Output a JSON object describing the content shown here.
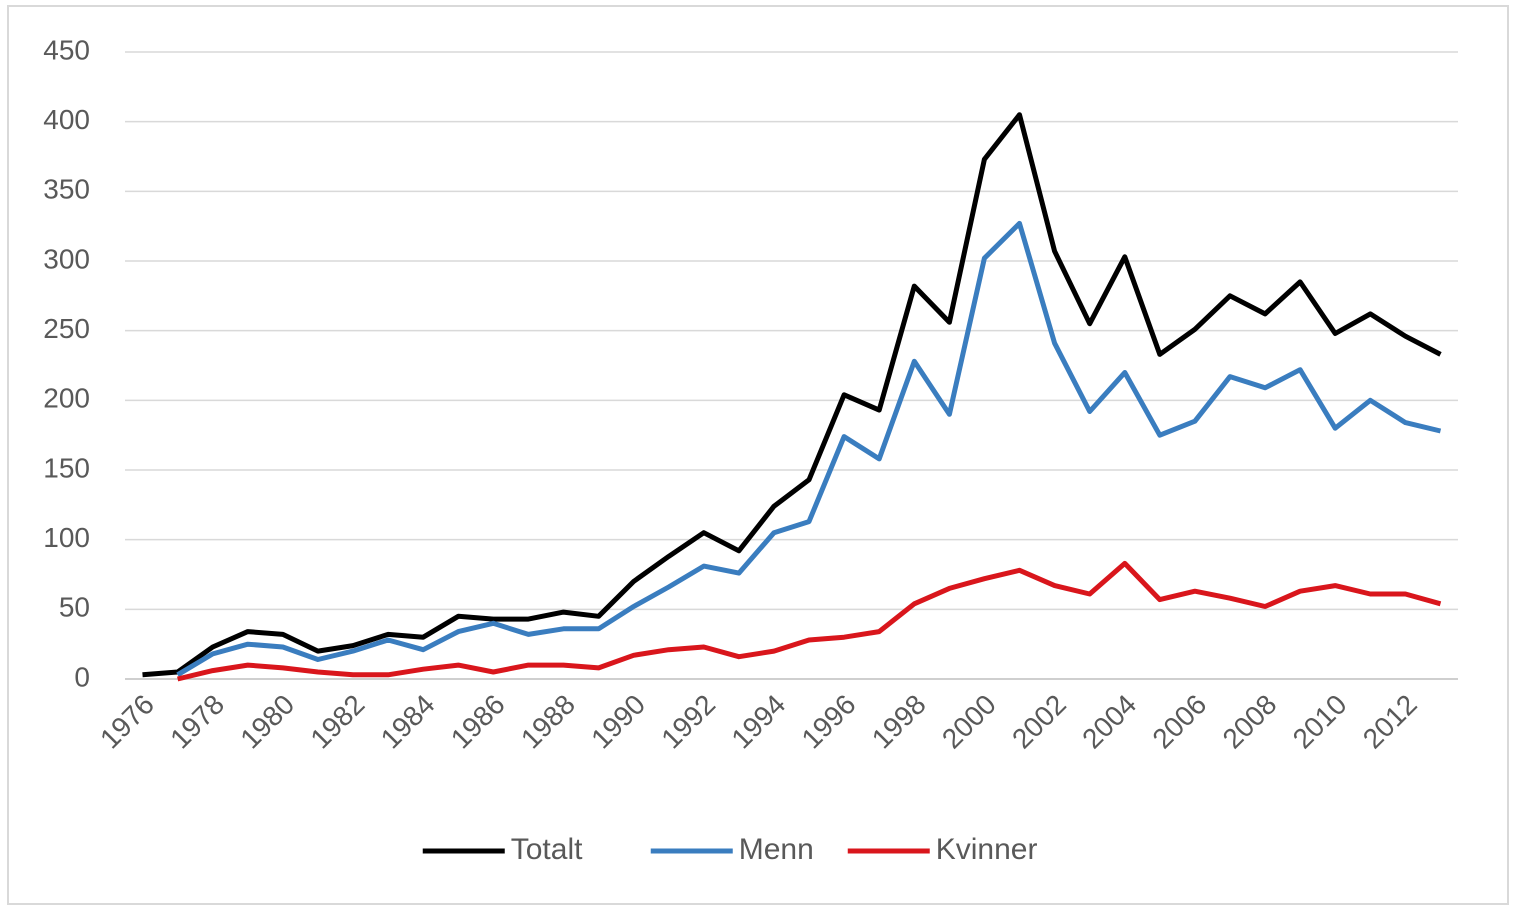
{
  "chart_data": {
    "type": "line",
    "categories": [
      "1976",
      null,
      "1978",
      null,
      "1980",
      null,
      "1982",
      null,
      "1984",
      null,
      "1986",
      null,
      "1988",
      null,
      "1990",
      null,
      "1992",
      null,
      "1994",
      null,
      "1996",
      null,
      "1998",
      null,
      "2000",
      null,
      "2002",
      null,
      "2004",
      null,
      "2006",
      null,
      "2008",
      null,
      "2010",
      null,
      "2012",
      null
    ],
    "series": [
      {
        "name": "Totalt",
        "color": "#000000",
        "values": [
          3,
          5,
          23,
          34,
          32,
          20,
          24,
          32,
          30,
          45,
          43,
          43,
          48,
          45,
          70,
          88,
          105,
          92,
          124,
          143,
          204,
          193,
          282,
          256,
          373,
          405,
          307,
          255,
          303,
          233,
          251,
          275,
          262,
          285,
          248,
          262,
          246,
          233
        ]
      },
      {
        "name": "Menn",
        "color": "#3a7dbf",
        "values": [
          null,
          3,
          18,
          25,
          23,
          14,
          20,
          28,
          21,
          34,
          40,
          32,
          36,
          36,
          52,
          66,
          81,
          76,
          105,
          113,
          174,
          158,
          228,
          190,
          302,
          327,
          241,
          192,
          220,
          175,
          185,
          217,
          209,
          222,
          180,
          200,
          184,
          178
        ]
      },
      {
        "name": "Kvinner",
        "color": "#d9161c",
        "values": [
          null,
          0,
          6,
          10,
          8,
          5,
          3,
          3,
          7,
          10,
          5,
          10,
          10,
          8,
          17,
          21,
          23,
          16,
          20,
          28,
          30,
          34,
          54,
          65,
          72,
          78,
          67,
          61,
          83,
          57,
          63,
          58,
          52,
          63,
          67,
          61,
          61,
          54
        ]
      }
    ],
    "ylim": [
      0,
      450
    ],
    "yticks": [
      0,
      50,
      100,
      150,
      200,
      250,
      300,
      350,
      400,
      450
    ],
    "grid": true,
    "legend": "bottom"
  }
}
